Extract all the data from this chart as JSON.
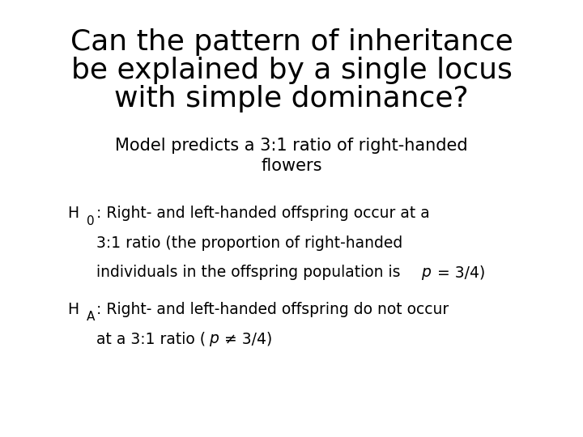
{
  "title_line1": "Can the pattern of inheritance",
  "title_line2": "be explained by a single locus",
  "title_line3": "with simple dominance?",
  "subtitle_line1": "Model predicts a 3:1 ratio of right-handed",
  "subtitle_line2": "flowers",
  "background_color": "#ffffff",
  "text_color": "#000000",
  "title_fontsize": 26,
  "subtitle_fontsize": 15,
  "body_fontsize": 13.5
}
